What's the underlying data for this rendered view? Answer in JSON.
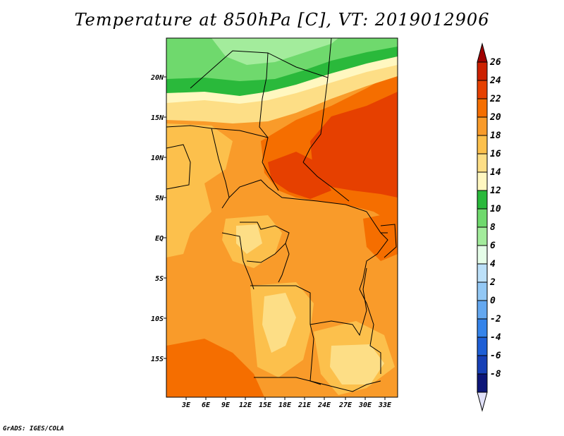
{
  "title": "Temperature at 850hPa [C], VT: 2019012906",
  "credit": "GrADS: IGES/COLA",
  "map": {
    "lat_labels": [
      "20N",
      "15N",
      "10N",
      "5N",
      "EQ",
      "5S",
      "10S",
      "15S"
    ],
    "lon_labels": [
      "3E",
      "6E",
      "9E",
      "12E",
      "15E",
      "18E",
      "21E",
      "24E",
      "27E",
      "30E",
      "33E"
    ]
  },
  "colorbar": {
    "levels": [
      "26",
      "24",
      "22",
      "20",
      "18",
      "16",
      "14",
      "12",
      "10",
      "8",
      "6",
      "4",
      "2",
      "0",
      "-2",
      "-4",
      "-6",
      "-8"
    ],
    "colors": [
      "#a00000",
      "#cc2000",
      "#e64000",
      "#f56e00",
      "#f99b2a",
      "#fcc04c",
      "#fdde86",
      "#fff7c0",
      "#2ab93b",
      "#6fd96d",
      "#a3ec9c",
      "#e5fde8",
      "#bce0f9",
      "#93c8f5",
      "#64a8f0",
      "#3584ea",
      "#1e5fd6",
      "#1740b6",
      "#0d1678",
      "#e0e0f8"
    ]
  },
  "colors": {
    "border": "#000000"
  }
}
